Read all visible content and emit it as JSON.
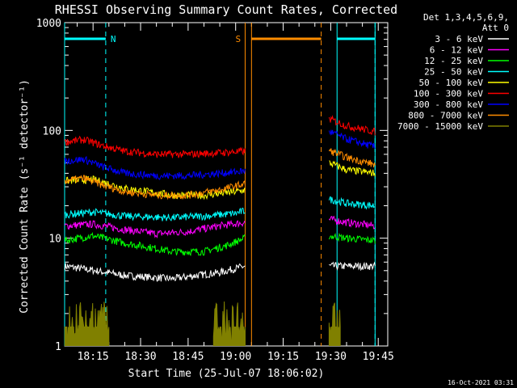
{
  "chart_data": {
    "type": "line",
    "title": "RHESSI Observing Summary Count Rates, Corrected",
    "xlabel": "Start Time (25-Jul-07 18:06:02)",
    "ylabel": "Corrected Count Rate (s⁻¹ detector⁻¹)",
    "yscale": "log",
    "ylim": [
      1,
      1000
    ],
    "y_ticks": [
      "1",
      "10",
      "100",
      "1000"
    ],
    "x_range_minutes": [
      6.03,
      108
    ],
    "x_ticks": [
      {
        "min": 15,
        "label": "18:15"
      },
      {
        "min": 30,
        "label": "18:30"
      },
      {
        "min": 45,
        "label": "18:45"
      },
      {
        "min": 60,
        "label": "19:00"
      },
      {
        "min": 75,
        "label": "19:15"
      },
      {
        "min": 90,
        "label": "19:30"
      },
      {
        "min": 105,
        "label": "19:45"
      }
    ],
    "legend_header": [
      "Det 1,3,4,5,6,9,",
      "Att 0"
    ],
    "legend_position": "right",
    "series": [
      {
        "name": "3 - 6 keV",
        "color": "#ffffff",
        "segments": [
          {
            "x": [
              6.1,
              25,
              40,
              55,
              63
            ],
            "y": [
              5.5,
              4.5,
              4.2,
              4.8,
              5.5
            ]
          },
          {
            "x": [
              89.5,
              104
            ],
            "y": [
              5.5,
              5.5
            ]
          }
        ]
      },
      {
        "name": "6 - 12 keV",
        "color": "#ff00ff",
        "segments": [
          {
            "x": [
              6.1,
              15,
              25,
              35,
              45,
              55,
              63
            ],
            "y": [
              13,
              13.5,
              12,
              11,
              11.5,
              13,
              14
            ]
          },
          {
            "x": [
              89.5,
              95,
              104
            ],
            "y": [
              15,
              14,
              13
            ]
          }
        ]
      },
      {
        "name": "12 - 25 keV",
        "color": "#00ff00",
        "segments": [
          {
            "x": [
              6.1,
              15,
              25,
              40,
              50,
              57,
              63
            ],
            "y": [
              9.5,
              10.5,
              9,
              7.5,
              7.5,
              8.5,
              10
            ]
          },
          {
            "x": [
              89.5,
              95,
              104
            ],
            "y": [
              10.5,
              10,
              9.5
            ]
          }
        ]
      },
      {
        "name": "25 - 50 keV",
        "color": "#00ffff",
        "segments": [
          {
            "x": [
              6.1,
              15,
              25,
              40,
              50,
              60,
              63
            ],
            "y": [
              16.5,
              17.5,
              16,
              15.5,
              16,
              17,
              18
            ]
          },
          {
            "x": [
              89.5,
              95,
              104
            ],
            "y": [
              23,
              21,
              20
            ]
          }
        ]
      },
      {
        "name": "50 - 100 keV",
        "color": "#ffff00",
        "segments": [
          {
            "x": [
              6.1,
              15,
              25,
              40,
              50,
              60,
              63
            ],
            "y": [
              34,
              35,
              29,
              25,
              25,
              27,
              28
            ]
          },
          {
            "x": [
              89.5,
              95,
              104
            ],
            "y": [
              50,
              43,
              40
            ]
          }
        ]
      },
      {
        "name": "100 - 300 keV",
        "color": "#ff0000",
        "segments": [
          {
            "x": [
              6.1,
              12,
              18,
              25,
              35,
              45,
              55,
              63
            ],
            "y": [
              78,
              82,
              72,
              64,
              60,
              60,
              62,
              64
            ]
          },
          {
            "x": [
              89.5,
              95,
              104
            ],
            "y": [
              128,
              110,
              97
            ]
          }
        ]
      },
      {
        "name": "300 - 800 keV",
        "color": "#0000ff",
        "segments": [
          {
            "x": [
              6.1,
              12,
              18,
              25,
              35,
              45,
              55,
              63
            ],
            "y": [
              52,
              54,
              46,
              40,
              38,
              38,
              40,
              42
            ]
          },
          {
            "x": [
              89.5,
              95,
              104
            ],
            "y": [
              98,
              83,
              70
            ]
          }
        ]
      },
      {
        "name": "800 - 7000 keV",
        "color": "#ff8c00",
        "segments": [
          {
            "x": [
              6.1,
              12,
              18,
              25,
              35,
              45,
              55,
              63
            ],
            "y": [
              34,
              36,
              31,
              27,
              25,
              25,
              28,
              32
            ]
          },
          {
            "x": [
              89.5,
              95,
              104
            ],
            "y": [
              65,
              56,
              48
            ]
          }
        ]
      },
      {
        "name": "7000 - 15000 keV",
        "color": "#808000",
        "segments": [
          {
            "x": [
              6.1,
              20
            ],
            "y": [
              1.5,
              1.5
            ]
          },
          {
            "x": [
              53,
              63
            ],
            "y": [
              1.5,
              1.5
            ]
          },
          {
            "x": [
              89.5,
              93
            ],
            "y": [
              1.5,
              1.5
            ]
          }
        ]
      }
    ],
    "annotations": [
      {
        "label": "N",
        "color": "#00ffff",
        "bar_x": [
          6.03,
          19
        ],
        "dashed_x": [
          19,
          104
        ],
        "solid_x": [
          92,
          104
        ],
        "bar2_x": [
          92,
          104
        ]
      },
      {
        "label": "S",
        "color": "#ff8c00",
        "solid_x": [
          63,
          65
        ],
        "bar_x": [
          65,
          87
        ],
        "dashed_x": [
          87
        ]
      }
    ]
  },
  "footer_timestamp": "16-Oct-2021 03:31"
}
